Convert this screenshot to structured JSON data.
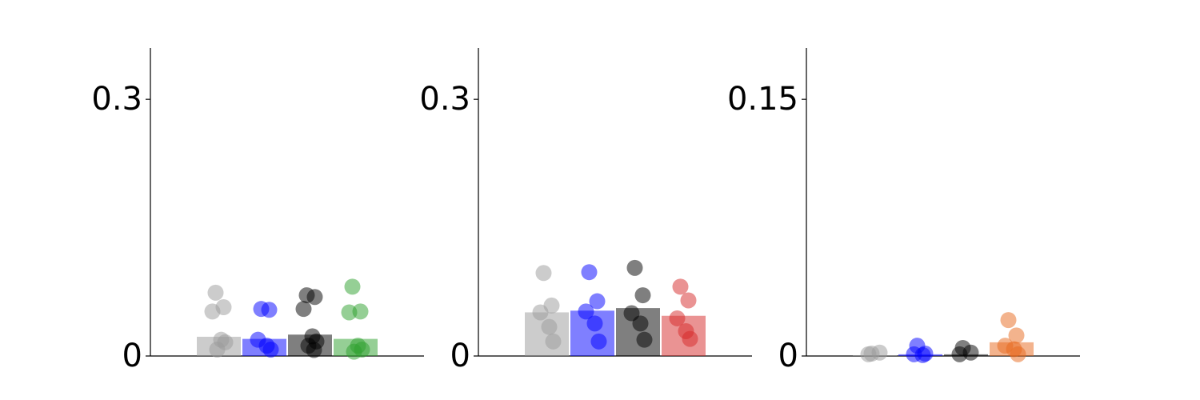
{
  "chart_data": [
    {
      "type": "bar",
      "ylim": [
        0,
        0.36
      ],
      "yticks": [
        0,
        0.3
      ],
      "series": [
        {
          "color": "#999999",
          "bar": 0.0225,
          "points": [
            0.074,
            0.057,
            0.052,
            0.019,
            0.016,
            0.0075
          ]
        },
        {
          "color": "#0000ff",
          "bar": 0.02,
          "points": [
            0.055,
            0.054,
            0.019,
            0.012,
            0.0075
          ]
        },
        {
          "color": "#000000",
          "bar": 0.025,
          "points": [
            0.071,
            0.069,
            0.055,
            0.023,
            0.017,
            0.012,
            0.007
          ]
        },
        {
          "color": "#2ca02c",
          "bar": 0.02,
          "points": [
            0.081,
            0.052,
            0.051,
            0.012,
            0.0075,
            0.005
          ]
        }
      ]
    },
    {
      "type": "bar",
      "ylim": [
        0,
        0.36
      ],
      "yticks": [
        0,
        0.3
      ],
      "series": [
        {
          "color": "#999999",
          "bar": 0.051,
          "points": [
            0.097,
            0.059,
            0.051,
            0.034,
            0.017
          ]
        },
        {
          "color": "#0000ff",
          "bar": 0.053,
          "points": [
            0.098,
            0.064,
            0.052,
            0.038,
            0.017
          ]
        },
        {
          "color": "#000000",
          "bar": 0.056,
          "points": [
            0.103,
            0.071,
            0.05,
            0.038,
            0.019
          ]
        },
        {
          "color": "#d62728",
          "bar": 0.047,
          "points": [
            0.081,
            0.065,
            0.044,
            0.029,
            0.02
          ]
        }
      ]
    },
    {
      "type": "bar",
      "ylim": [
        0,
        0.18
      ],
      "yticks": [
        0,
        0.15
      ],
      "series": [
        {
          "color": "#999999",
          "bar": 0.0003,
          "points": [
            0.0014,
            0.002,
            0.001
          ]
        },
        {
          "color": "#0000ff",
          "bar": 0.001,
          "points": [
            0.006,
            0.0014,
            0.001,
            0.0005
          ]
        },
        {
          "color": "#000000",
          "bar": 0.001,
          "points": [
            0.0047,
            0.002,
            0.001
          ]
        },
        {
          "color": "#e8671b",
          "bar": 0.008,
          "points": [
            0.021,
            0.012,
            0.006,
            0.004,
            0.001
          ]
        }
      ]
    }
  ]
}
